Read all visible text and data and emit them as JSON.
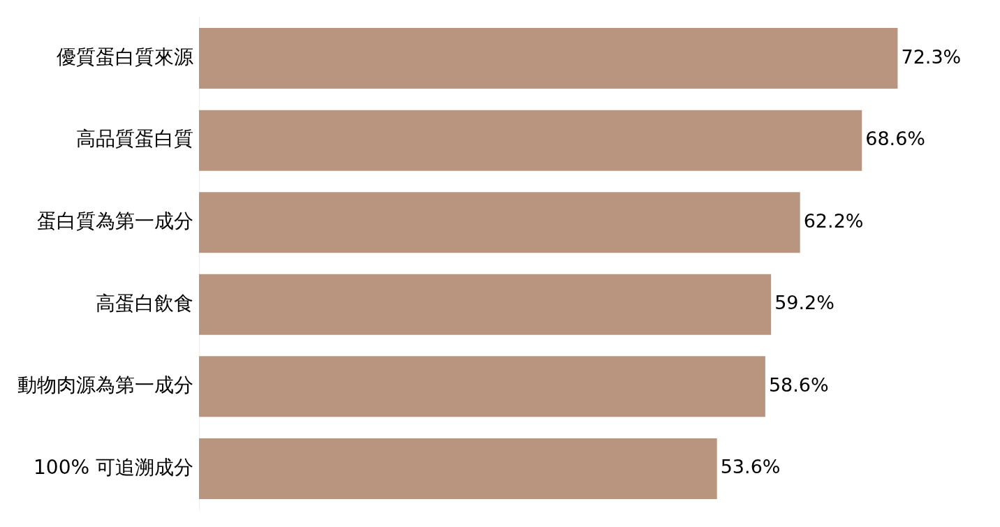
{
  "chart_data": {
    "type": "bar",
    "orientation": "horizontal",
    "categories": [
      "優質蛋白質來源",
      "高品質蛋白質",
      "蛋白質為第一成分",
      "高蛋白飲食",
      "動物肉源為第一成分",
      "100% 可追溯成分"
    ],
    "values": [
      72.3,
      68.6,
      62.2,
      59.2,
      58.6,
      53.6
    ],
    "color": "#b9957f",
    "value_labels": [
      "72.3%",
      "68.6%",
      "62.2%",
      "59.2%",
      "58.6%",
      "53.6%"
    ]
  }
}
